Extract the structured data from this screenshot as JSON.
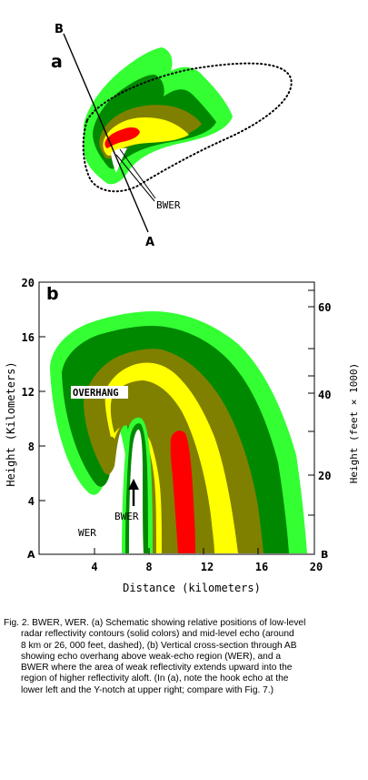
{
  "colors": {
    "light_green": "#33ff33",
    "dark_green": "#008800",
    "olive": "#808000",
    "yellow": "#ffff00",
    "red": "#ff0000"
  },
  "panel_a": {
    "label": "a",
    "endpoint_top": "B",
    "endpoint_bottom": "A",
    "bwer_label": "BWER"
  },
  "panel_b": {
    "label": "b",
    "left_axis_ticks": [
      "20",
      "16",
      "12",
      "8",
      "4"
    ],
    "left_axis_title": "Height (Kilometers)",
    "right_axis_ticks": [
      "60",
      "40",
      "20"
    ],
    "right_axis_title": "Height (feet × 1000)",
    "bottom_axis_ticks": [
      "4",
      "8",
      "12",
      "16",
      "20"
    ],
    "bottom_axis_title": "Distance (kilometers)",
    "corner_left": "A",
    "corner_right": "B",
    "overhang_label": "OVERHANG",
    "bwer_label": "BWER",
    "wer_label": "WER"
  },
  "caption": {
    "lines": [
      "Fig. 2. BWER, WER.  (a) Schematic showing relative positions of low-level",
      "radar reflectivity contours (solid colors) and mid-level echo (around",
      "8 km or 26, 000 feet, dashed), (b) Vertical cross-section through AB",
      "showing echo overhang above weak-echo region (WER), and a",
      "BWER where the area of weak reflectivity extends upward into the",
      "region of higher reflectivity aloft.  (In (a), note the hook echo at the",
      "lower left and the Y-notch at upper right; compare with Fig. 7.)"
    ]
  }
}
